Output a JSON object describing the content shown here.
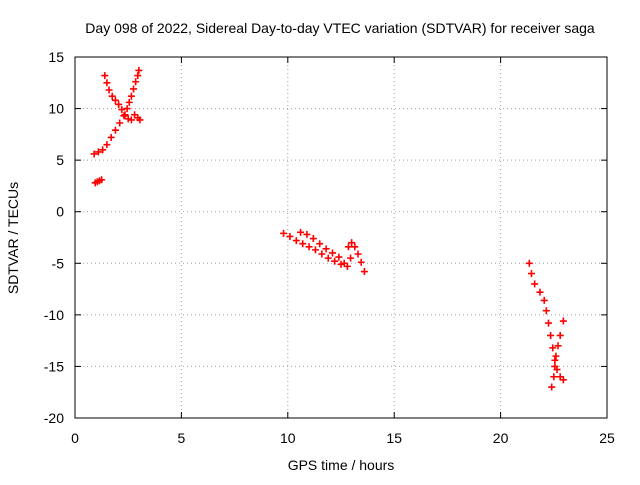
{
  "chart_data": {
    "type": "scatter",
    "title": "Day 098 of 2022, Sidereal Day-to-day VTEC variation (SDTVAR) for receiver saga",
    "xlabel": "GPS time / hours",
    "ylabel": "SDTVAR / TECUs",
    "xlim": [
      0,
      25
    ],
    "ylim": [
      -20,
      15
    ],
    "x_ticks": [
      0,
      5,
      10,
      15,
      20,
      25
    ],
    "y_ticks": [
      -20,
      -15,
      -10,
      -5,
      0,
      5,
      10,
      15
    ],
    "x_tick_labels": [
      "0",
      "5",
      "10",
      "15",
      "20",
      "25"
    ],
    "y_tick_labels": [
      "-20",
      "-15",
      "-10",
      "-5",
      "0",
      "5",
      "10",
      "15"
    ],
    "grid": true,
    "legend": "none",
    "marker": "plus",
    "colors": {
      "series": "#ff0000",
      "grid": "#a0a0a0",
      "axis": "#000000"
    },
    "series": [
      {
        "points": [
          [
            0.95,
            2.8
          ],
          [
            1.05,
            2.9
          ],
          [
            1.15,
            3.0
          ],
          [
            1.25,
            3.1
          ],
          [
            0.9,
            5.6
          ],
          [
            1.1,
            5.8
          ],
          [
            1.3,
            6.0
          ],
          [
            1.5,
            6.5
          ],
          [
            1.7,
            7.2
          ],
          [
            1.9,
            7.9
          ],
          [
            2.1,
            8.6
          ],
          [
            2.3,
            9.3
          ],
          [
            2.45,
            10.0
          ],
          [
            2.55,
            10.6
          ],
          [
            2.65,
            11.2
          ],
          [
            2.75,
            11.9
          ],
          [
            2.85,
            12.6
          ],
          [
            2.95,
            13.2
          ],
          [
            3.0,
            13.7
          ],
          [
            1.4,
            13.2
          ],
          [
            1.5,
            12.5
          ],
          [
            1.6,
            11.8
          ],
          [
            1.75,
            11.2
          ],
          [
            1.9,
            10.8
          ],
          [
            2.05,
            10.4
          ],
          [
            2.2,
            9.9
          ],
          [
            2.35,
            9.4
          ],
          [
            2.5,
            9.0
          ],
          [
            2.65,
            8.9
          ],
          [
            2.8,
            9.4
          ],
          [
            2.95,
            9.1
          ],
          [
            3.05,
            8.9
          ],
          [
            9.8,
            -2.1
          ],
          [
            10.1,
            -2.4
          ],
          [
            10.4,
            -2.8
          ],
          [
            10.7,
            -3.1
          ],
          [
            11.0,
            -3.4
          ],
          [
            11.3,
            -3.7
          ],
          [
            11.6,
            -4.1
          ],
          [
            11.9,
            -4.5
          ],
          [
            12.2,
            -4.8
          ],
          [
            12.5,
            -5.1
          ],
          [
            10.6,
            -2.0
          ],
          [
            10.9,
            -2.2
          ],
          [
            11.2,
            -2.6
          ],
          [
            11.5,
            -3.1
          ],
          [
            11.8,
            -3.6
          ],
          [
            12.1,
            -4.0
          ],
          [
            12.4,
            -4.4
          ],
          [
            12.65,
            -5.0
          ],
          [
            12.8,
            -5.3
          ],
          [
            12.95,
            -4.5
          ],
          [
            12.85,
            -3.4
          ],
          [
            13.0,
            -3.0
          ],
          [
            13.15,
            -3.4
          ],
          [
            13.3,
            -4.1
          ],
          [
            13.45,
            -4.9
          ],
          [
            13.6,
            -5.8
          ],
          [
            21.35,
            -5.0
          ],
          [
            21.45,
            -6.0
          ],
          [
            21.6,
            -7.0
          ],
          [
            21.85,
            -7.8
          ],
          [
            22.05,
            -8.6
          ],
          [
            22.15,
            -9.6
          ],
          [
            22.25,
            -10.8
          ],
          [
            22.35,
            -12.0
          ],
          [
            22.45,
            -13.2
          ],
          [
            22.55,
            -14.4
          ],
          [
            22.65,
            -15.3
          ],
          [
            22.8,
            -16.0
          ],
          [
            22.95,
            -16.3
          ],
          [
            22.4,
            -17.0
          ],
          [
            22.5,
            -16.0
          ],
          [
            22.55,
            -15.0
          ],
          [
            22.6,
            -14.0
          ],
          [
            22.7,
            -13.0
          ],
          [
            22.8,
            -12.0
          ],
          [
            22.95,
            -10.6
          ]
        ]
      }
    ]
  }
}
